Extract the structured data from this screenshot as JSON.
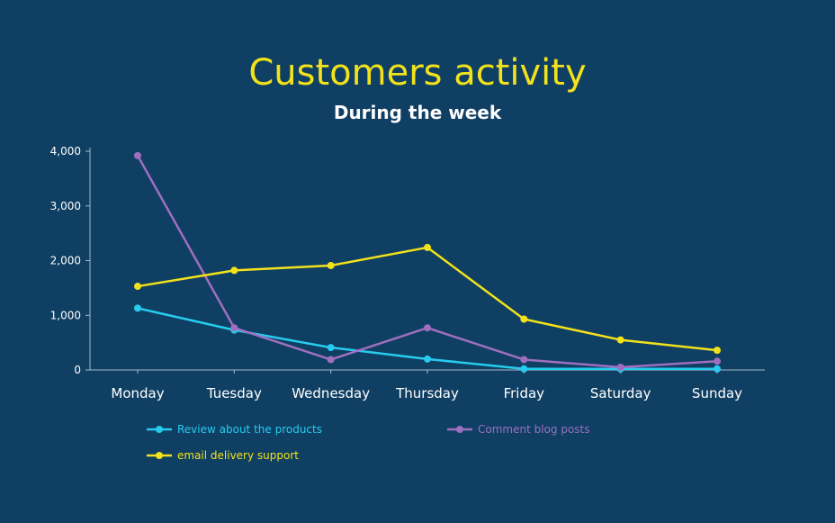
{
  "chart_data": {
    "type": "line",
    "title": "Customers activity",
    "subtitle": "During the week",
    "xlabel": "",
    "ylabel": "",
    "categories": [
      "Monday",
      "Tuesday",
      "Wednesday",
      "Thursday",
      "Friday",
      "Saturday",
      "Sunday"
    ],
    "ylim": [
      0,
      4000
    ],
    "yticks": [
      "0",
      "1,000",
      "2,000",
      "3,000",
      "4,000"
    ],
    "ytick_values": [
      0,
      1000,
      2000,
      3000,
      4000
    ],
    "grid": false,
    "legend_position": "bottom",
    "series": [
      {
        "name": "Review about the products",
        "color": "#27cbee",
        "values": [
          1130,
          730,
          410,
          200,
          20,
          20,
          20
        ]
      },
      {
        "name": "Comment blog posts",
        "color": "#9f6fbf",
        "values": [
          3920,
          770,
          190,
          770,
          190,
          50,
          160
        ]
      },
      {
        "name": "email delivery support",
        "color": "#f2e21b",
        "values": [
          1530,
          1820,
          1910,
          2240,
          930,
          550,
          360
        ]
      }
    ]
  },
  "colors": {
    "background": "#0f3f63",
    "title": "#f2e21b",
    "axis": "#aab8c8"
  }
}
